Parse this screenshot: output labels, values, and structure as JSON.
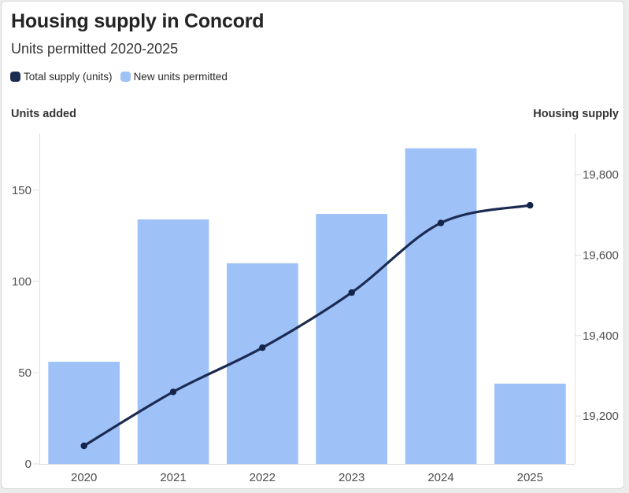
{
  "card": {
    "title": "Housing supply in Concord",
    "subtitle": "Units permitted 2020-2025"
  },
  "legend": {
    "items": [
      {
        "label": "Total supply (units)",
        "color": "#1c2b52"
      },
      {
        "label": "New units permitted",
        "color": "#9ec1f8"
      }
    ]
  },
  "axes": {
    "left_title": "Units added",
    "right_title": "Housing supply"
  },
  "chart_data": {
    "type": "combo",
    "title": "Housing supply in Concord",
    "subtitle": "Units permitted 2020-2025",
    "categories": [
      "2020",
      "2021",
      "2022",
      "2023",
      "2024",
      "2025"
    ],
    "series": [
      {
        "name": "New units permitted",
        "type": "bar",
        "axis": "left",
        "color": "#9ec1f8",
        "values": [
          56,
          134,
          110,
          137,
          173,
          44
        ]
      },
      {
        "name": "Total supply (units)",
        "type": "line",
        "axis": "right",
        "color": "#1c2b52",
        "point_color": "#15244a",
        "values": [
          19126,
          19260,
          19370,
          19507,
          19680,
          19724
        ]
      }
    ],
    "left_axis": {
      "title": "Units added",
      "ticks": [
        0,
        50,
        100,
        150
      ],
      "ylim": [
        0,
        181
      ]
    },
    "right_axis": {
      "title": "Housing supply",
      "ticks": [
        19200,
        19400,
        19600,
        19800
      ],
      "ylim": [
        19081,
        19902
      ],
      "tick_format": "thousands-comma"
    },
    "grid": "off",
    "legend_position": "top-left",
    "axis_color": "#e2e2e2",
    "baseline_color": "#d9d9d9",
    "tick_color": "#dddddd"
  }
}
